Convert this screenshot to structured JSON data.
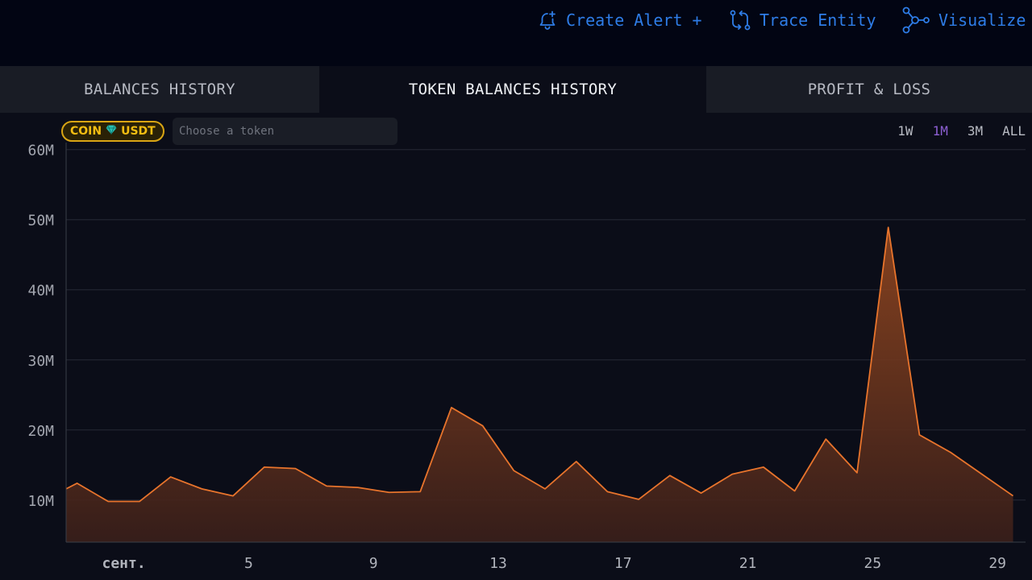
{
  "header": {
    "create_alert_label": "Create Alert +",
    "trace_entity_label": "Trace Entity",
    "visualize_label": "Visualize"
  },
  "tabs": [
    {
      "label": "BALANCES HISTORY",
      "active": false
    },
    {
      "label": "TOKEN BALANCES HISTORY",
      "active": true
    },
    {
      "label": "PROFIT & LOSS",
      "active": false
    }
  ],
  "filters": {
    "coin_badge_label": "COIN",
    "token_symbol": "USDT",
    "token_input_placeholder": "Choose a token",
    "ranges": [
      "1W",
      "1M",
      "3M",
      "ALL"
    ],
    "selected_range": "1M"
  },
  "colors": {
    "accent_link": "#2e7ce6",
    "series_line": "#e8742c",
    "coin_badge": "#f4bd12",
    "selected_range": "#8d5fd3"
  },
  "chart_data": {
    "type": "area",
    "y_tick_labels": [
      "10M",
      "20M",
      "30M",
      "40M",
      "50M",
      "60M"
    ],
    "y_ticks": [
      10,
      20,
      30,
      40,
      50,
      60
    ],
    "x_tick_labels": [
      "сент.",
      "5",
      "9",
      "13",
      "17",
      "21",
      "25",
      "29"
    ],
    "x_ticks": [
      1,
      5,
      9,
      13,
      17,
      21,
      25,
      29
    ],
    "ylim": [
      4,
      61
    ],
    "xlim": [
      -0.85,
      29.9
    ],
    "grid": true,
    "x": [
      -0.85,
      -0.5,
      0.5,
      1.5,
      2.5,
      3.5,
      4.5,
      5.5,
      6.5,
      7.5,
      8.5,
      9.5,
      10.5,
      11.5,
      12.5,
      13.5,
      14.5,
      15.5,
      16.5,
      17.5,
      18.5,
      19.5,
      20.5,
      21.5,
      22.5,
      23.5,
      24.5,
      25.5,
      26.5,
      27.5,
      28.5,
      29.5
    ],
    "values": [
      11.6,
      12.4,
      9.8,
      9.8,
      13.3,
      11.6,
      10.6,
      14.7,
      14.5,
      12.0,
      11.8,
      11.1,
      11.2,
      23.2,
      20.6,
      14.2,
      11.6,
      15.5,
      11.2,
      10.1,
      13.5,
      11.0,
      13.7,
      14.7,
      11.3,
      18.7,
      13.9,
      48.9,
      19.3,
      16.8,
      13.7,
      10.6
    ]
  }
}
